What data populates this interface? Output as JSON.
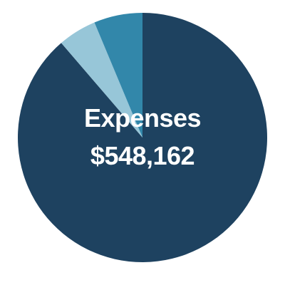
{
  "chart_data": {
    "type": "pie",
    "title": "",
    "center_title": "Expenses",
    "center_value": "$548,162",
    "start_angle_deg": 0,
    "direction": "clockwise",
    "slices": [
      {
        "value": 88.7,
        "color": "#1e4260"
      },
      {
        "value": 5.0,
        "color": "#97c6d8"
      },
      {
        "value": 6.3,
        "color": "#3287aa"
      }
    ]
  }
}
